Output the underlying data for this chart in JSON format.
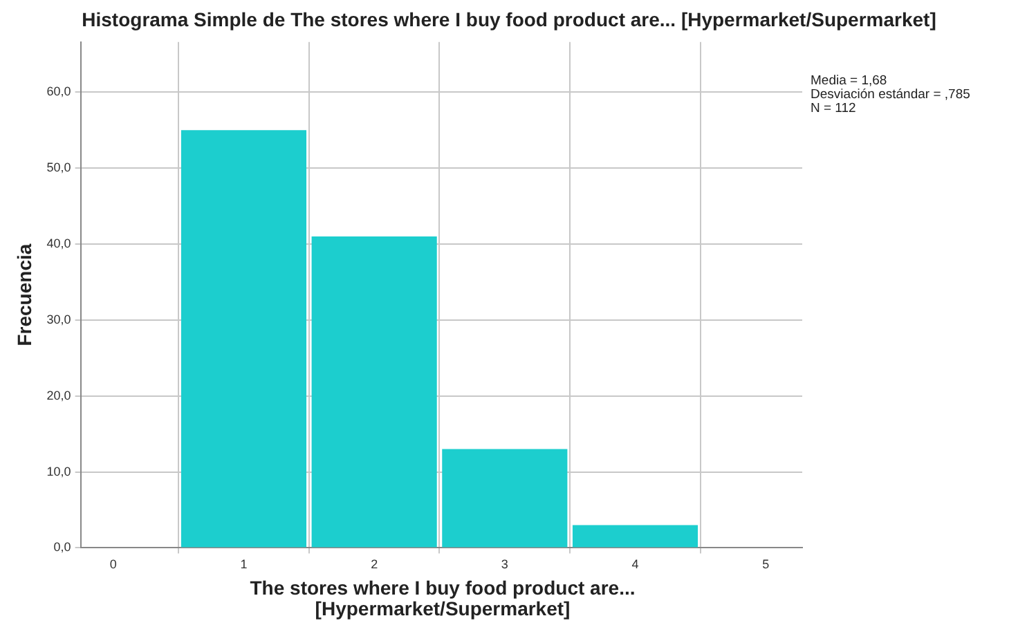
{
  "chart_data": {
    "type": "histogram",
    "title": "Histograma Simple de The stores where I buy food product are... [Hypermarket/Supermarket]",
    "xlabel": "The stores where I buy food product are... [Hypermarket/Supermarket]",
    "ylabel": "Frecuencia",
    "bins": [
      0.5,
      1.5,
      2.5,
      3.5,
      4.5
    ],
    "values": [
      55,
      41,
      13,
      3
    ],
    "color": "#1ccece",
    "xlim": [
      -0.25,
      5.28
    ],
    "xticks": [
      0,
      1,
      2,
      3,
      4,
      5
    ],
    "ylim": [
      0,
      66.6
    ],
    "yticks": [
      {
        "value": 0,
        "label": "0,0"
      },
      {
        "value": 10,
        "label": "10,0"
      },
      {
        "value": 20,
        "label": "20,0"
      },
      {
        "value": 30,
        "label": "30,0"
      },
      {
        "value": 40,
        "label": "40,0"
      },
      {
        "value": 50,
        "label": "50,0"
      },
      {
        "value": 60,
        "label": "60,0"
      }
    ],
    "grid": true,
    "legend": false,
    "annotations": [
      "Media = 1,68",
      "Desviación estándar = ,785",
      "N = 112"
    ]
  }
}
